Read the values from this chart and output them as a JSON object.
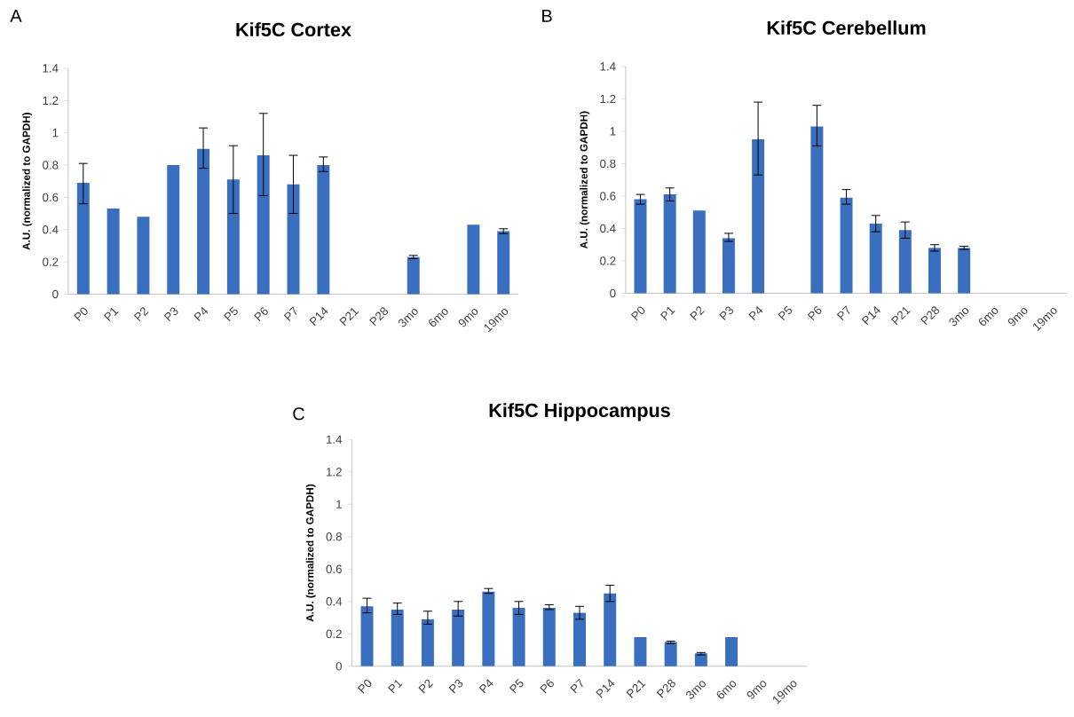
{
  "chart_data": [
    {
      "type": "bar",
      "title": "Kif5C Cortex",
      "ylabel": "A.U. (normalized to GAPDH)",
      "annotations": [
        "A"
      ],
      "categories": [
        "P0",
        "P1",
        "P2",
        "P3",
        "P4",
        "P5",
        "P6",
        "P7",
        "P14",
        "P21",
        "P28",
        "3mo",
        "6mo",
        "9mo",
        "19mo"
      ],
      "values": [
        0.69,
        0.53,
        0.48,
        0.8,
        0.9,
        0.71,
        0.86,
        0.68,
        0.8,
        null,
        null,
        0.23,
        null,
        0.43,
        0.39
      ],
      "errors": [
        [
          0.56,
          0.81
        ],
        null,
        null,
        null,
        [
          0.78,
          1.03
        ],
        [
          0.5,
          0.92
        ],
        [
          0.61,
          1.12
        ],
        [
          0.5,
          0.86
        ],
        [
          0.76,
          0.85
        ],
        null,
        null,
        0.01,
        null,
        null,
        0.015
      ],
      "color": "#3a6fc0",
      "ylim": [
        0,
        1.4
      ],
      "yticks": [
        0,
        0.2,
        0.4,
        0.6,
        0.8,
        1,
        1.2,
        1.4
      ]
    },
    {
      "type": "bar",
      "title": "Kif5C Cerebellum",
      "ylabel": "A.U. (normalized to GAPDH)",
      "annotations": [
        "B"
      ],
      "categories": [
        "P0",
        "P1",
        "P2",
        "P3",
        "P4",
        "P5",
        "P6",
        "P7",
        "P14",
        "P21",
        "P28",
        "3mo",
        "6mo",
        "9mo",
        "19mo"
      ],
      "values": [
        0.58,
        0.61,
        0.51,
        0.34,
        0.95,
        null,
        1.03,
        0.59,
        0.43,
        0.39,
        0.28,
        0.28,
        null,
        null,
        null
      ],
      "errors": [
        0.03,
        [
          0.57,
          0.65
        ],
        null,
        [
          0.32,
          0.37
        ],
        [
          0.73,
          1.18
        ],
        null,
        [
          0.91,
          1.16
        ],
        [
          0.55,
          0.64
        ],
        [
          0.38,
          0.48
        ],
        [
          0.34,
          0.44
        ],
        [
          0.26,
          0.3
        ],
        [
          0.27,
          0.29
        ],
        null,
        null,
        null
      ],
      "color": "#3a6fc0",
      "ylim": [
        0,
        1.4
      ],
      "yticks": [
        0,
        0.2,
        0.4,
        0.6,
        0.8,
        1,
        1.2,
        1.4
      ]
    },
    {
      "type": "bar",
      "title": "Kif5C Hippocampus",
      "ylabel": "A.U. (normalized to GAPDH)",
      "annotations": [
        "C"
      ],
      "categories": [
        "P0",
        "P1",
        "P2",
        "P3",
        "P4",
        "P5",
        "P6",
        "P7",
        "P14",
        "P21",
        "P28",
        "3mo",
        "6mo",
        "9mo",
        "19mo"
      ],
      "values": [
        0.37,
        0.35,
        0.29,
        0.35,
        0.46,
        0.36,
        0.36,
        0.33,
        0.45,
        0.18,
        0.15,
        0.08,
        0.18,
        null,
        null
      ],
      "errors": [
        [
          0.33,
          0.42
        ],
        [
          0.32,
          0.39
        ],
        [
          0.26,
          0.34
        ],
        [
          0.31,
          0.4
        ],
        [
          0.45,
          0.48
        ],
        [
          0.32,
          0.4
        ],
        [
          0.35,
          0.38
        ],
        [
          0.29,
          0.37
        ],
        [
          0.4,
          0.5
        ],
        null,
        [
          0.14,
          0.155
        ],
        [
          0.07,
          0.085
        ],
        null,
        null,
        null
      ],
      "color": "#3a6fc0",
      "ylim": [
        0,
        1.4
      ],
      "yticks": [
        0,
        0.2,
        0.4,
        0.6,
        0.8,
        1,
        1.2,
        1.4
      ]
    }
  ]
}
